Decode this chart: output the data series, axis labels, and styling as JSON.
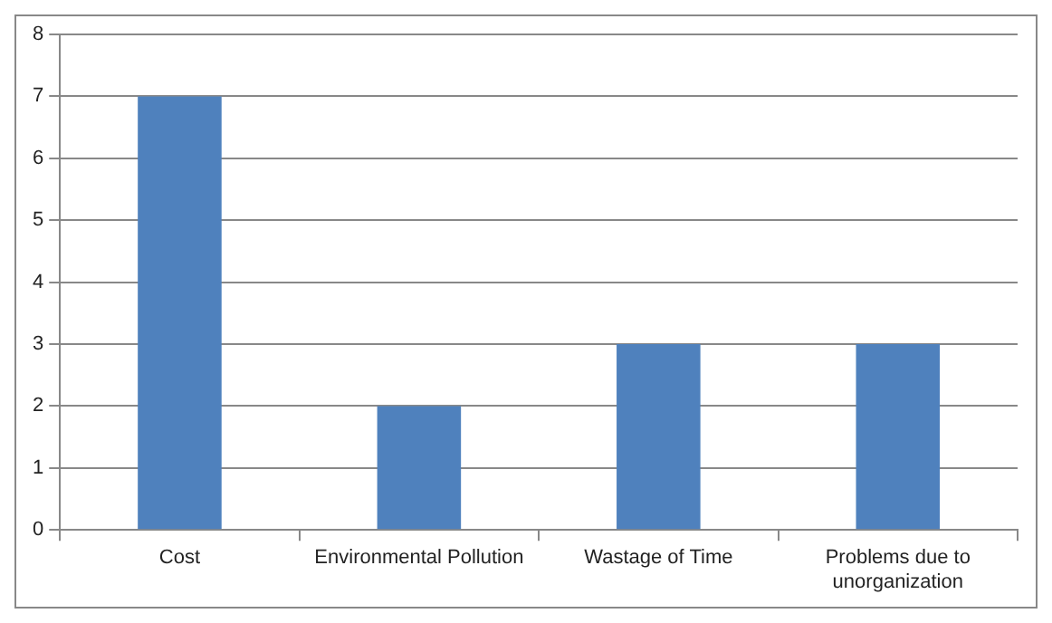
{
  "chart_data": {
    "type": "bar",
    "categories": [
      "Cost",
      "Environmental Pollution",
      "Wastage of Time",
      "Problems due to unorganization"
    ],
    "values": [
      7,
      2,
      3,
      3
    ],
    "color": "#4f81bd",
    "ylim": [
      0,
      8
    ],
    "yticks": [
      0,
      1,
      2,
      3,
      4,
      5,
      6,
      7,
      8
    ],
    "grid": "y",
    "legend": false
  }
}
